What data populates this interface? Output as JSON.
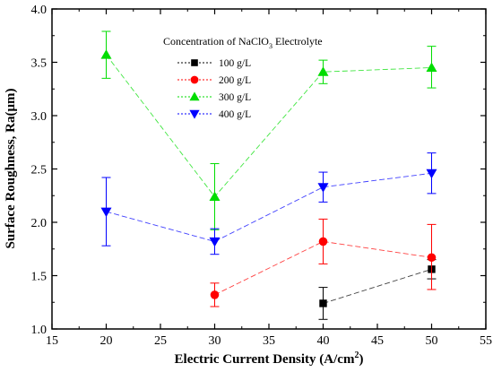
{
  "chart_data": {
    "type": "line",
    "xlabel": "Electric Current Density (A/cm",
    "xlabel_sup": "2",
    "xlabel_end": ")",
    "ylabel": "Surface Roughness, Ra(μm)",
    "xlim": [
      15,
      55
    ],
    "ylim": [
      1.0,
      4.0
    ],
    "xticks": [
      "15",
      "20",
      "25",
      "30",
      "35",
      "40",
      "45",
      "50",
      "55"
    ],
    "yticks": [
      "1.0",
      "1.5",
      "2.0",
      "2.5",
      "3.0",
      "3.5",
      "4.0"
    ],
    "legend_title_pre": "Concentration of NaClO",
    "legend_title_sub": "3",
    "legend_title_post": " Electrolyte",
    "legend_position": "top-right",
    "grid": false,
    "series": [
      {
        "name": "100 g/L",
        "color": "#000000",
        "marker": "square",
        "x": [
          40,
          50
        ],
        "y": [
          1.24,
          1.56
        ],
        "err_lo": [
          0.15,
          0.09
        ],
        "err_hi": [
          0.15,
          0.09
        ]
      },
      {
        "name": "200 g/L",
        "color": "#ff0000",
        "marker": "circle",
        "x": [
          30,
          40,
          50
        ],
        "y": [
          1.32,
          1.82,
          1.67
        ],
        "err_lo": [
          0.11,
          0.21,
          0.3
        ],
        "err_hi": [
          0.11,
          0.21,
          0.31
        ]
      },
      {
        "name": "300 g/L",
        "color": "#00dd00",
        "marker": "triangle-up",
        "x": [
          20,
          30,
          40,
          50
        ],
        "y": [
          3.57,
          2.24,
          3.41,
          3.45
        ],
        "err_lo": [
          0.22,
          0.31,
          0.11,
          0.19
        ],
        "err_hi": [
          0.22,
          0.31,
          0.11,
          0.2
        ]
      },
      {
        "name": "400 g/L",
        "color": "#0000ff",
        "marker": "triangle-down",
        "x": [
          20,
          30,
          40,
          50
        ],
        "y": [
          2.1,
          1.82,
          2.33,
          2.46
        ],
        "err_lo": [
          0.32,
          0.12,
          0.14,
          0.19
        ],
        "err_hi": [
          0.32,
          0.12,
          0.14,
          0.19
        ]
      }
    ]
  }
}
